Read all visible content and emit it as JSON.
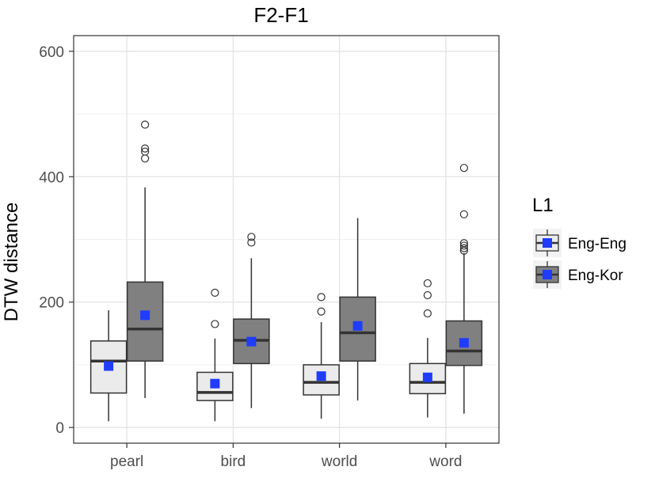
{
  "chart_data": {
    "type": "boxplot",
    "title": "F2-F1",
    "xlabel": "",
    "ylabel": "DTW distance",
    "categories": [
      "pearl",
      "bird",
      "world",
      "word"
    ],
    "ylim": [
      -25,
      625
    ],
    "yticks": [
      0,
      200,
      400,
      600
    ],
    "grid": true,
    "legend": {
      "title": "L1",
      "position": "right"
    },
    "series": [
      {
        "name": "Eng-Eng",
        "fill": "#ebebeb",
        "boxes": [
          {
            "category": "pearl",
            "whisker_low": 10,
            "q1": 55,
            "median": 106,
            "q3": 138,
            "whisker_high": 187,
            "mean": 98,
            "outliers": []
          },
          {
            "category": "bird",
            "whisker_low": 10,
            "q1": 43,
            "median": 56,
            "q3": 88,
            "whisker_high": 142,
            "mean": 70,
            "outliers": [
              165,
              215
            ]
          },
          {
            "category": "world",
            "whisker_low": 14,
            "q1": 52,
            "median": 72,
            "q3": 100,
            "whisker_high": 168,
            "mean": 82,
            "outliers": [
              185,
              208
            ]
          },
          {
            "category": "word",
            "whisker_low": 16,
            "q1": 54,
            "median": 72,
            "q3": 102,
            "whisker_high": 143,
            "mean": 80,
            "outliers": [
              182,
              211,
              230
            ]
          }
        ]
      },
      {
        "name": "Eng-Kor",
        "fill": "#808080",
        "boxes": [
          {
            "category": "pearl",
            "whisker_low": 47,
            "q1": 106,
            "median": 157,
            "q3": 232,
            "whisker_high": 383,
            "mean": 179,
            "outliers": [
              429,
              440,
              445,
              483
            ]
          },
          {
            "category": "bird",
            "whisker_low": 31,
            "q1": 102,
            "median": 139,
            "q3": 173,
            "whisker_high": 270,
            "mean": 137,
            "outliers": [
              295,
              304
            ]
          },
          {
            "category": "world",
            "whisker_low": 43,
            "q1": 106,
            "median": 151,
            "q3": 208,
            "whisker_high": 334,
            "mean": 162,
            "outliers": []
          },
          {
            "category": "word",
            "whisker_low": 22,
            "q1": 99,
            "median": 122,
            "q3": 170,
            "whisker_high": 278,
            "mean": 135,
            "outliers": [
              282,
              286,
              290,
              294,
              340,
              414
            ]
          }
        ]
      }
    ],
    "mean_marker_color": "#1f3cff"
  }
}
